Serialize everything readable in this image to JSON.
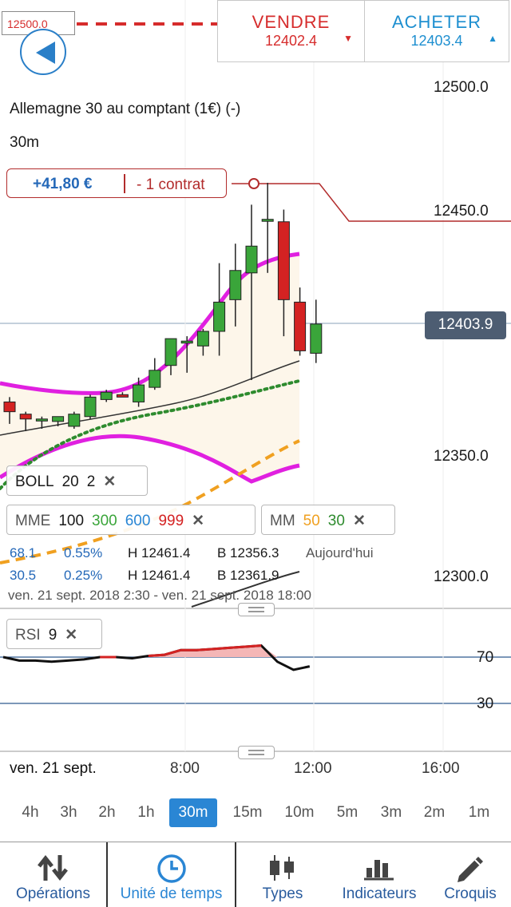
{
  "header": {
    "top_tag": "12500.0",
    "sell": {
      "label": "VENDRE",
      "price": "12402.4"
    },
    "buy": {
      "label": "ACHETER",
      "price": "12403.4"
    }
  },
  "chart": {
    "instrument": "Allemagne 30 au comptant (1€) (-)",
    "timeframe_label": "30m",
    "position": {
      "pnl": "+41,80 €",
      "quantity": "- 1 contrat"
    },
    "price_axis": [
      "12500.0",
      "12450.0",
      "12350.0",
      "12300.0"
    ],
    "current_price": "12403.9",
    "date_range": "ven. 21 sept. 2018 2:30 - ven. 21 sept. 2018 18:00"
  },
  "chart_data": {
    "type": "candlestick",
    "ylim": [
      12290,
      12515
    ],
    "candles": [
      {
        "o": 12371,
        "h": 12373,
        "l": 12362,
        "c": 12367
      },
      {
        "o": 12366,
        "h": 12367,
        "l": 12359,
        "c": 12364
      },
      {
        "o": 12364,
        "h": 12365,
        "l": 12360,
        "c": 12364
      },
      {
        "o": 12363,
        "h": 12365,
        "l": 12361,
        "c": 12365
      },
      {
        "o": 12361,
        "h": 12367,
        "l": 12360,
        "c": 12366
      },
      {
        "o": 12365,
        "h": 12374,
        "l": 12364,
        "c": 12373
      },
      {
        "o": 12372,
        "h": 12376,
        "l": 12371,
        "c": 12375
      },
      {
        "o": 12374,
        "h": 12375,
        "l": 12373,
        "c": 12373
      },
      {
        "o": 12371,
        "h": 12381,
        "l": 12369,
        "c": 12378
      },
      {
        "o": 12377,
        "h": 12389,
        "l": 12376,
        "c": 12384
      },
      {
        "o": 12386,
        "h": 12397,
        "l": 12382,
        "c": 12397
      },
      {
        "o": 12396,
        "h": 12398,
        "l": 12383,
        "c": 12396
      },
      {
        "o": 12394,
        "h": 12401,
        "l": 12390,
        "c": 12400
      },
      {
        "o": 12400,
        "h": 12428,
        "l": 12390,
        "c": 12412
      },
      {
        "o": 12413,
        "h": 12436,
        "l": 12402,
        "c": 12425
      },
      {
        "o": 12424,
        "h": 12452,
        "l": 12380,
        "c": 12435
      },
      {
        "o": 12446,
        "h": 12461,
        "l": 12424,
        "c": 12446
      },
      {
        "o": 12445,
        "h": 12450,
        "l": 12398,
        "c": 12413
      },
      {
        "o": 12412,
        "h": 12418,
        "l": 12390,
        "c": 12392
      },
      {
        "o": 12391,
        "h": 12413,
        "l": 12387,
        "c": 12403
      }
    ],
    "rsi_levels": [
      70,
      30
    ],
    "rsi": [
      70,
      67,
      67,
      66,
      67,
      68,
      70,
      70,
      69,
      71,
      72,
      76,
      76,
      77,
      78,
      79,
      80,
      66,
      59,
      62
    ]
  },
  "indicators": {
    "boll": {
      "name": "BOLL",
      "p1": "20",
      "p2": "2"
    },
    "mme": {
      "name": "MME",
      "v1": "100",
      "v2": "300",
      "v3": "600",
      "v4": "999"
    },
    "mm": {
      "name": "MM",
      "v1": "50",
      "v2": "30"
    },
    "rsi": {
      "name": "RSI",
      "p1": "9"
    }
  },
  "stats": {
    "row1": {
      "a": "68.1",
      "b": "0.55%",
      "h": "H 12461.4",
      "l": "B 12356.3",
      "period": "Aujourd'hui"
    },
    "row2": {
      "a": "30.5",
      "b": "0.25%",
      "h": "H 12461.4",
      "l": "B 12361.9"
    }
  },
  "rsi_axis": [
    "70",
    "30"
  ],
  "time_axis": {
    "date": "ven. 21 sept.",
    "t1": "8:00",
    "t2": "12:00",
    "t3": "16:00"
  },
  "timeframes": [
    "4h",
    "3h",
    "2h",
    "1h",
    "30m",
    "15m",
    "10m",
    "5m",
    "3m",
    "2m",
    "1m"
  ],
  "active_timeframe": "30m",
  "toolbar": [
    {
      "label": "Opérations",
      "icon": "transfer-arrows-icon"
    },
    {
      "label": "Unité de temps",
      "icon": "clock-icon"
    },
    {
      "label": "Types",
      "icon": "candlestick-icon"
    },
    {
      "label": "Indicateurs",
      "icon": "bar-chart-icon"
    },
    {
      "label": "Croquis",
      "icon": "pencil-icon"
    }
  ],
  "colors": {
    "bull": "#3aa53a",
    "bear": "#d42222",
    "bollinger": "#e020e0",
    "ma_green": "#2e8b2e",
    "ma_orange": "#f0a020",
    "rsi_fill": "#f4b6b6",
    "accent": "#2a86d4"
  }
}
